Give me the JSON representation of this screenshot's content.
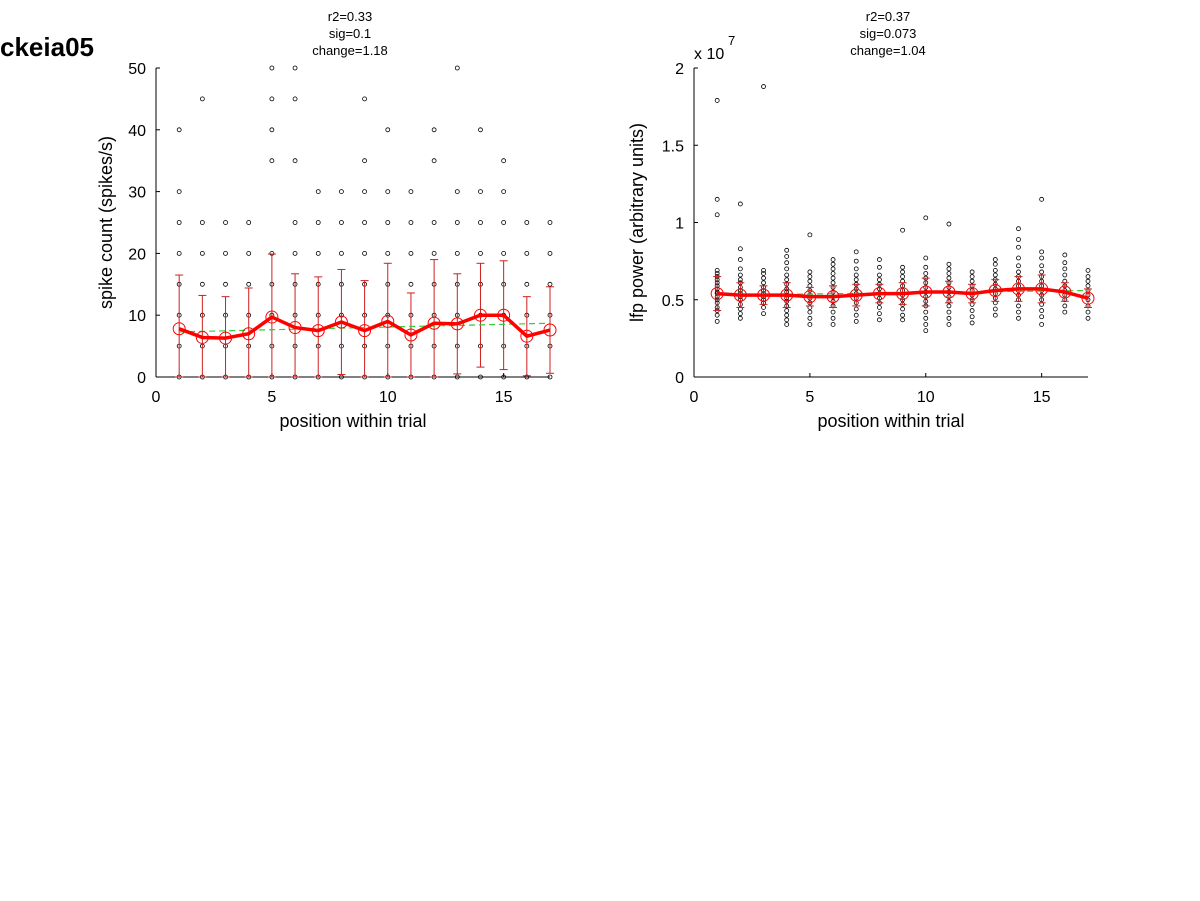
{
  "figure_label": "ckeia05",
  "chart_data": [
    {
      "type": "scatter",
      "title_lines": [
        "r2=0.33",
        "sig=0.1",
        "change=1.18"
      ],
      "xlabel": "position within trial",
      "ylabel": "spike count (spikes/s)",
      "xlim": [
        0,
        17
      ],
      "ylim": [
        0,
        50
      ],
      "xticks": [
        "0",
        "5",
        "10",
        "15"
      ],
      "yticks": [
        "0",
        "10",
        "20",
        "30",
        "40",
        "50"
      ],
      "exponent_label": "",
      "grid": false,
      "colors": {
        "points": "#000000",
        "mean": "#ff0000",
        "errorbar": "#cc2020",
        "fit": "#33cc33"
      },
      "x": [
        1,
        2,
        3,
        4,
        5,
        6,
        7,
        8,
        9,
        10,
        11,
        12,
        13,
        14,
        15,
        16,
        17
      ],
      "mean": [
        7.8,
        6.4,
        6.3,
        7.0,
        9.7,
        8.0,
        7.5,
        8.9,
        7.5,
        9.0,
        6.8,
        8.7,
        8.6,
        10.0,
        10.0,
        6.6,
        7.6
      ],
      "error": [
        8.7,
        6.8,
        6.7,
        7.4,
        10.2,
        8.7,
        8.7,
        8.5,
        8.1,
        9.4,
        6.8,
        10.3,
        8.1,
        8.4,
        8.8,
        6.4,
        7.0
      ],
      "trend": {
        "x": [
          1,
          17
        ],
        "y": [
          7.3,
          8.7
        ]
      },
      "points": [
        [
          0,
          5,
          10,
          15,
          20,
          25,
          30,
          40
        ],
        [
          0,
          5,
          10,
          15,
          20,
          25,
          45
        ],
        [
          0,
          5,
          10,
          15,
          20,
          25
        ],
        [
          0,
          5,
          10,
          15,
          20,
          25
        ],
        [
          0,
          5,
          10,
          15,
          20,
          35,
          40,
          45,
          50
        ],
        [
          0,
          5,
          10,
          15,
          20,
          25,
          35,
          45,
          50
        ],
        [
          0,
          5,
          10,
          15,
          20,
          25,
          30
        ],
        [
          0,
          5,
          10,
          15,
          20,
          25,
          30
        ],
        [
          0,
          5,
          10,
          15,
          20,
          25,
          30,
          35,
          45
        ],
        [
          0,
          5,
          10,
          15,
          20,
          25,
          30,
          40
        ],
        [
          0,
          5,
          10,
          15,
          20,
          25,
          30
        ],
        [
          0,
          5,
          10,
          15,
          20,
          25,
          35,
          40
        ],
        [
          0,
          5,
          10,
          15,
          20,
          25,
          30,
          50
        ],
        [
          0,
          5,
          10,
          15,
          20,
          25,
          30,
          40
        ],
        [
          0,
          5,
          10,
          15,
          20,
          25,
          30,
          35
        ],
        [
          0,
          5,
          10,
          15,
          20,
          25
        ],
        [
          0,
          5,
          10,
          15,
          20,
          25
        ]
      ]
    },
    {
      "type": "scatter",
      "title_lines": [
        "r2=0.37",
        "sig=0.073",
        "change=1.04"
      ],
      "xlabel": "position within trial",
      "ylabel": "lfp power (arbitrary units)",
      "xlim": [
        0,
        17
      ],
      "ylim": [
        0,
        2
      ],
      "xticks": [
        "0",
        "5",
        "10",
        "15"
      ],
      "yticks": [
        "0",
        "0.5",
        "1",
        "1.5",
        "2"
      ],
      "exponent_label": "x 10",
      "exponent_power": "7",
      "grid": false,
      "colors": {
        "points": "#000000",
        "mean": "#ff0000",
        "errorbar": "#cc2020",
        "fit": "#33cc33"
      },
      "x": [
        1,
        2,
        3,
        4,
        5,
        6,
        7,
        8,
        9,
        10,
        11,
        12,
        13,
        14,
        15,
        16,
        17
      ],
      "mean": [
        0.54,
        0.53,
        0.53,
        0.53,
        0.52,
        0.52,
        0.53,
        0.54,
        0.54,
        0.55,
        0.55,
        0.54,
        0.56,
        0.57,
        0.57,
        0.55,
        0.51
      ],
      "error": [
        0.11,
        0.08,
        0.06,
        0.08,
        0.06,
        0.07,
        0.07,
        0.06,
        0.07,
        0.09,
        0.07,
        0.06,
        0.07,
        0.08,
        0.09,
        0.06,
        0.06
      ],
      "trend": {
        "x": [
          1,
          17
        ],
        "y": [
          0.53,
          0.56
        ]
      },
      "points": [
        [
          0.36,
          0.4,
          0.43,
          0.45,
          0.48,
          0.5,
          0.52,
          0.54,
          0.55,
          0.57,
          0.59,
          0.61,
          0.63,
          0.65,
          0.67,
          0.69,
          1.05,
          1.15,
          1.79
        ],
        [
          0.38,
          0.41,
          0.44,
          0.47,
          0.5,
          0.52,
          0.54,
          0.56,
          0.58,
          0.61,
          0.63,
          0.66,
          0.7,
          0.76,
          0.83,
          1.12
        ],
        [
          0.41,
          0.45,
          0.48,
          0.5,
          0.52,
          0.54,
          0.56,
          0.58,
          0.61,
          0.64,
          0.67,
          0.69,
          1.88
        ],
        [
          0.34,
          0.37,
          0.4,
          0.43,
          0.46,
          0.49,
          0.51,
          0.53,
          0.55,
          0.57,
          0.6,
          0.63,
          0.66,
          0.7,
          0.74,
          0.78,
          0.82
        ],
        [
          0.34,
          0.38,
          0.42,
          0.45,
          0.48,
          0.51,
          0.53,
          0.56,
          0.59,
          0.62,
          0.65,
          0.68,
          0.92
        ],
        [
          0.34,
          0.38,
          0.42,
          0.46,
          0.49,
          0.52,
          0.55,
          0.58,
          0.61,
          0.64,
          0.67,
          0.7,
          0.73,
          0.76
        ],
        [
          0.36,
          0.4,
          0.44,
          0.48,
          0.51,
          0.54,
          0.57,
          0.6,
          0.63,
          0.66,
          0.7,
          0.75,
          0.81
        ],
        [
          0.37,
          0.41,
          0.45,
          0.48,
          0.51,
          0.54,
          0.57,
          0.6,
          0.63,
          0.66,
          0.71,
          0.76
        ],
        [
          0.37,
          0.4,
          0.44,
          0.47,
          0.5,
          0.53,
          0.56,
          0.59,
          0.62,
          0.65,
          0.68,
          0.71,
          0.95
        ],
        [
          0.3,
          0.34,
          0.38,
          0.42,
          0.46,
          0.49,
          0.52,
          0.55,
          0.58,
          0.61,
          0.64,
          0.67,
          0.71,
          0.77,
          1.03
        ],
        [
          0.34,
          0.38,
          0.42,
          0.46,
          0.49,
          0.52,
          0.55,
          0.58,
          0.61,
          0.64,
          0.67,
          0.7,
          0.73,
          0.99
        ],
        [
          0.35,
          0.39,
          0.43,
          0.47,
          0.5,
          0.53,
          0.56,
          0.59,
          0.62,
          0.65,
          0.68
        ],
        [
          0.4,
          0.44,
          0.48,
          0.51,
          0.54,
          0.57,
          0.6,
          0.63,
          0.66,
          0.69,
          0.73,
          0.76
        ],
        [
          0.38,
          0.42,
          0.46,
          0.5,
          0.53,
          0.56,
          0.59,
          0.62,
          0.65,
          0.68,
          0.72,
          0.77,
          0.84,
          0.89,
          0.96
        ],
        [
          0.34,
          0.39,
          0.43,
          0.47,
          0.5,
          0.53,
          0.56,
          0.59,
          0.62,
          0.65,
          0.68,
          0.72,
          0.77,
          0.81,
          1.15
        ],
        [
          0.42,
          0.46,
          0.5,
          0.53,
          0.56,
          0.59,
          0.62,
          0.66,
          0.7,
          0.74,
          0.79
        ],
        [
          0.38,
          0.42,
          0.46,
          0.5,
          0.53,
          0.56,
          0.59,
          0.62,
          0.65,
          0.69
        ]
      ]
    }
  ]
}
